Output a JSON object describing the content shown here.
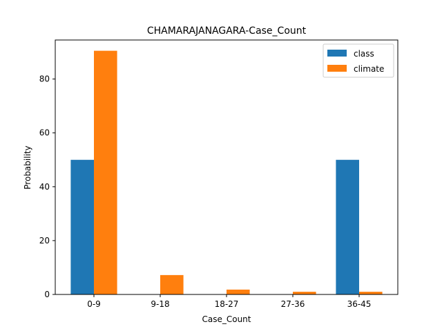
{
  "chart_data": {
    "type": "bar",
    "title": "CHAMARAJANAGARA-Case_Count",
    "xlabel": "Case_Count",
    "ylabel": "Probability",
    "categories": [
      "0-9",
      "9-18",
      "18-27",
      "27-36",
      "36-45"
    ],
    "series": [
      {
        "name": "class",
        "color": "#1f77b4",
        "values": [
          50.0,
          0,
          0,
          0,
          50.0
        ]
      },
      {
        "name": "climate",
        "color": "#ff7f0e",
        "values": [
          90.5,
          7.2,
          1.8,
          1.0,
          1.0
        ]
      }
    ],
    "ylim": [
      0,
      94.5
    ],
    "yticks": [
      0,
      20,
      40,
      60,
      80
    ],
    "grid": false,
    "legend_position": "top-right"
  }
}
